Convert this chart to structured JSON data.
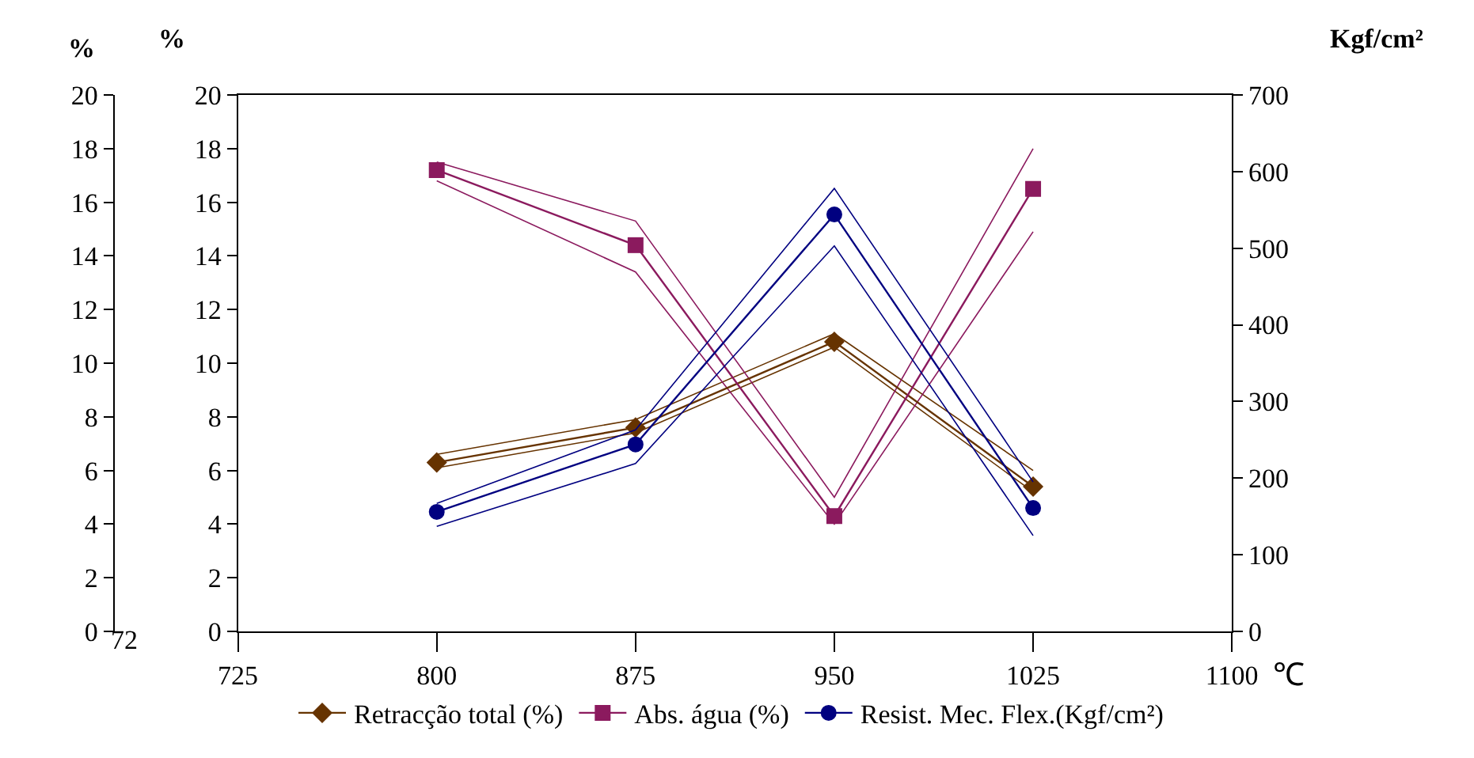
{
  "chart_data": {
    "type": "line",
    "x": [
      800,
      875,
      950,
      1025
    ],
    "series": [
      {
        "color": "#663300",
        "marker": "none",
        "values": [
          6.1,
          7.4,
          10.6,
          5.2
        ]
      },
      {
        "color": "#663300",
        "marker": "none",
        "values": [
          6.6,
          7.9,
          11.1,
          6.0
        ]
      },
      {
        "color": "#8b1a5e",
        "marker": "none",
        "values": [
          16.8,
          13.4,
          4.0,
          14.9
        ]
      },
      {
        "color": "#8b1a5e",
        "marker": "none",
        "values": [
          17.5,
          15.3,
          5.0,
          18.0
        ]
      },
      {
        "color": "#000080",
        "marker": "none",
        "axis": "y2",
        "values": [
          137,
          219,
          503,
          125
        ]
      },
      {
        "color": "#000080",
        "marker": "none",
        "axis": "y2",
        "values": [
          167,
          263,
          578,
          195
        ]
      },
      {
        "name": "Retracção total (%)",
        "color": "#663300",
        "marker": "diamond",
        "values": [
          6.3,
          7.6,
          10.8,
          5.4
        ]
      },
      {
        "name": "Abs. água (%)",
        "color": "#8b1a5e",
        "marker": "square",
        "values": [
          17.2,
          14.4,
          4.3,
          16.5
        ]
      },
      {
        "name": "Resist. Mec. Flex.(Kgf/cm²)",
        "color": "#000080",
        "marker": "circle",
        "axis": "y2",
        "values": [
          156,
          244,
          544,
          161
        ]
      }
    ],
    "xlabel": "℃",
    "ylabel": "%",
    "y3label": "%",
    "y2label": "Kgf/cm²",
    "xlim": [
      725,
      1100
    ],
    "xticks": [
      725,
      800,
      875,
      950,
      1025,
      1100
    ],
    "ylim": [
      0,
      20
    ],
    "yticks": [
      0,
      2,
      4,
      6,
      8,
      10,
      12,
      14,
      16,
      18,
      20
    ],
    "y3lim": [
      0,
      20
    ],
    "y3ticks": [
      0,
      2,
      4,
      6,
      8,
      10,
      12,
      14,
      16,
      18,
      20
    ],
    "y2lim": [
      0,
      700
    ],
    "y2ticks": [
      0,
      100,
      200,
      300,
      400,
      500,
      600,
      700
    ],
    "annotations": [
      "72"
    ],
    "legend": "bottom",
    "line_style": "solid"
  }
}
